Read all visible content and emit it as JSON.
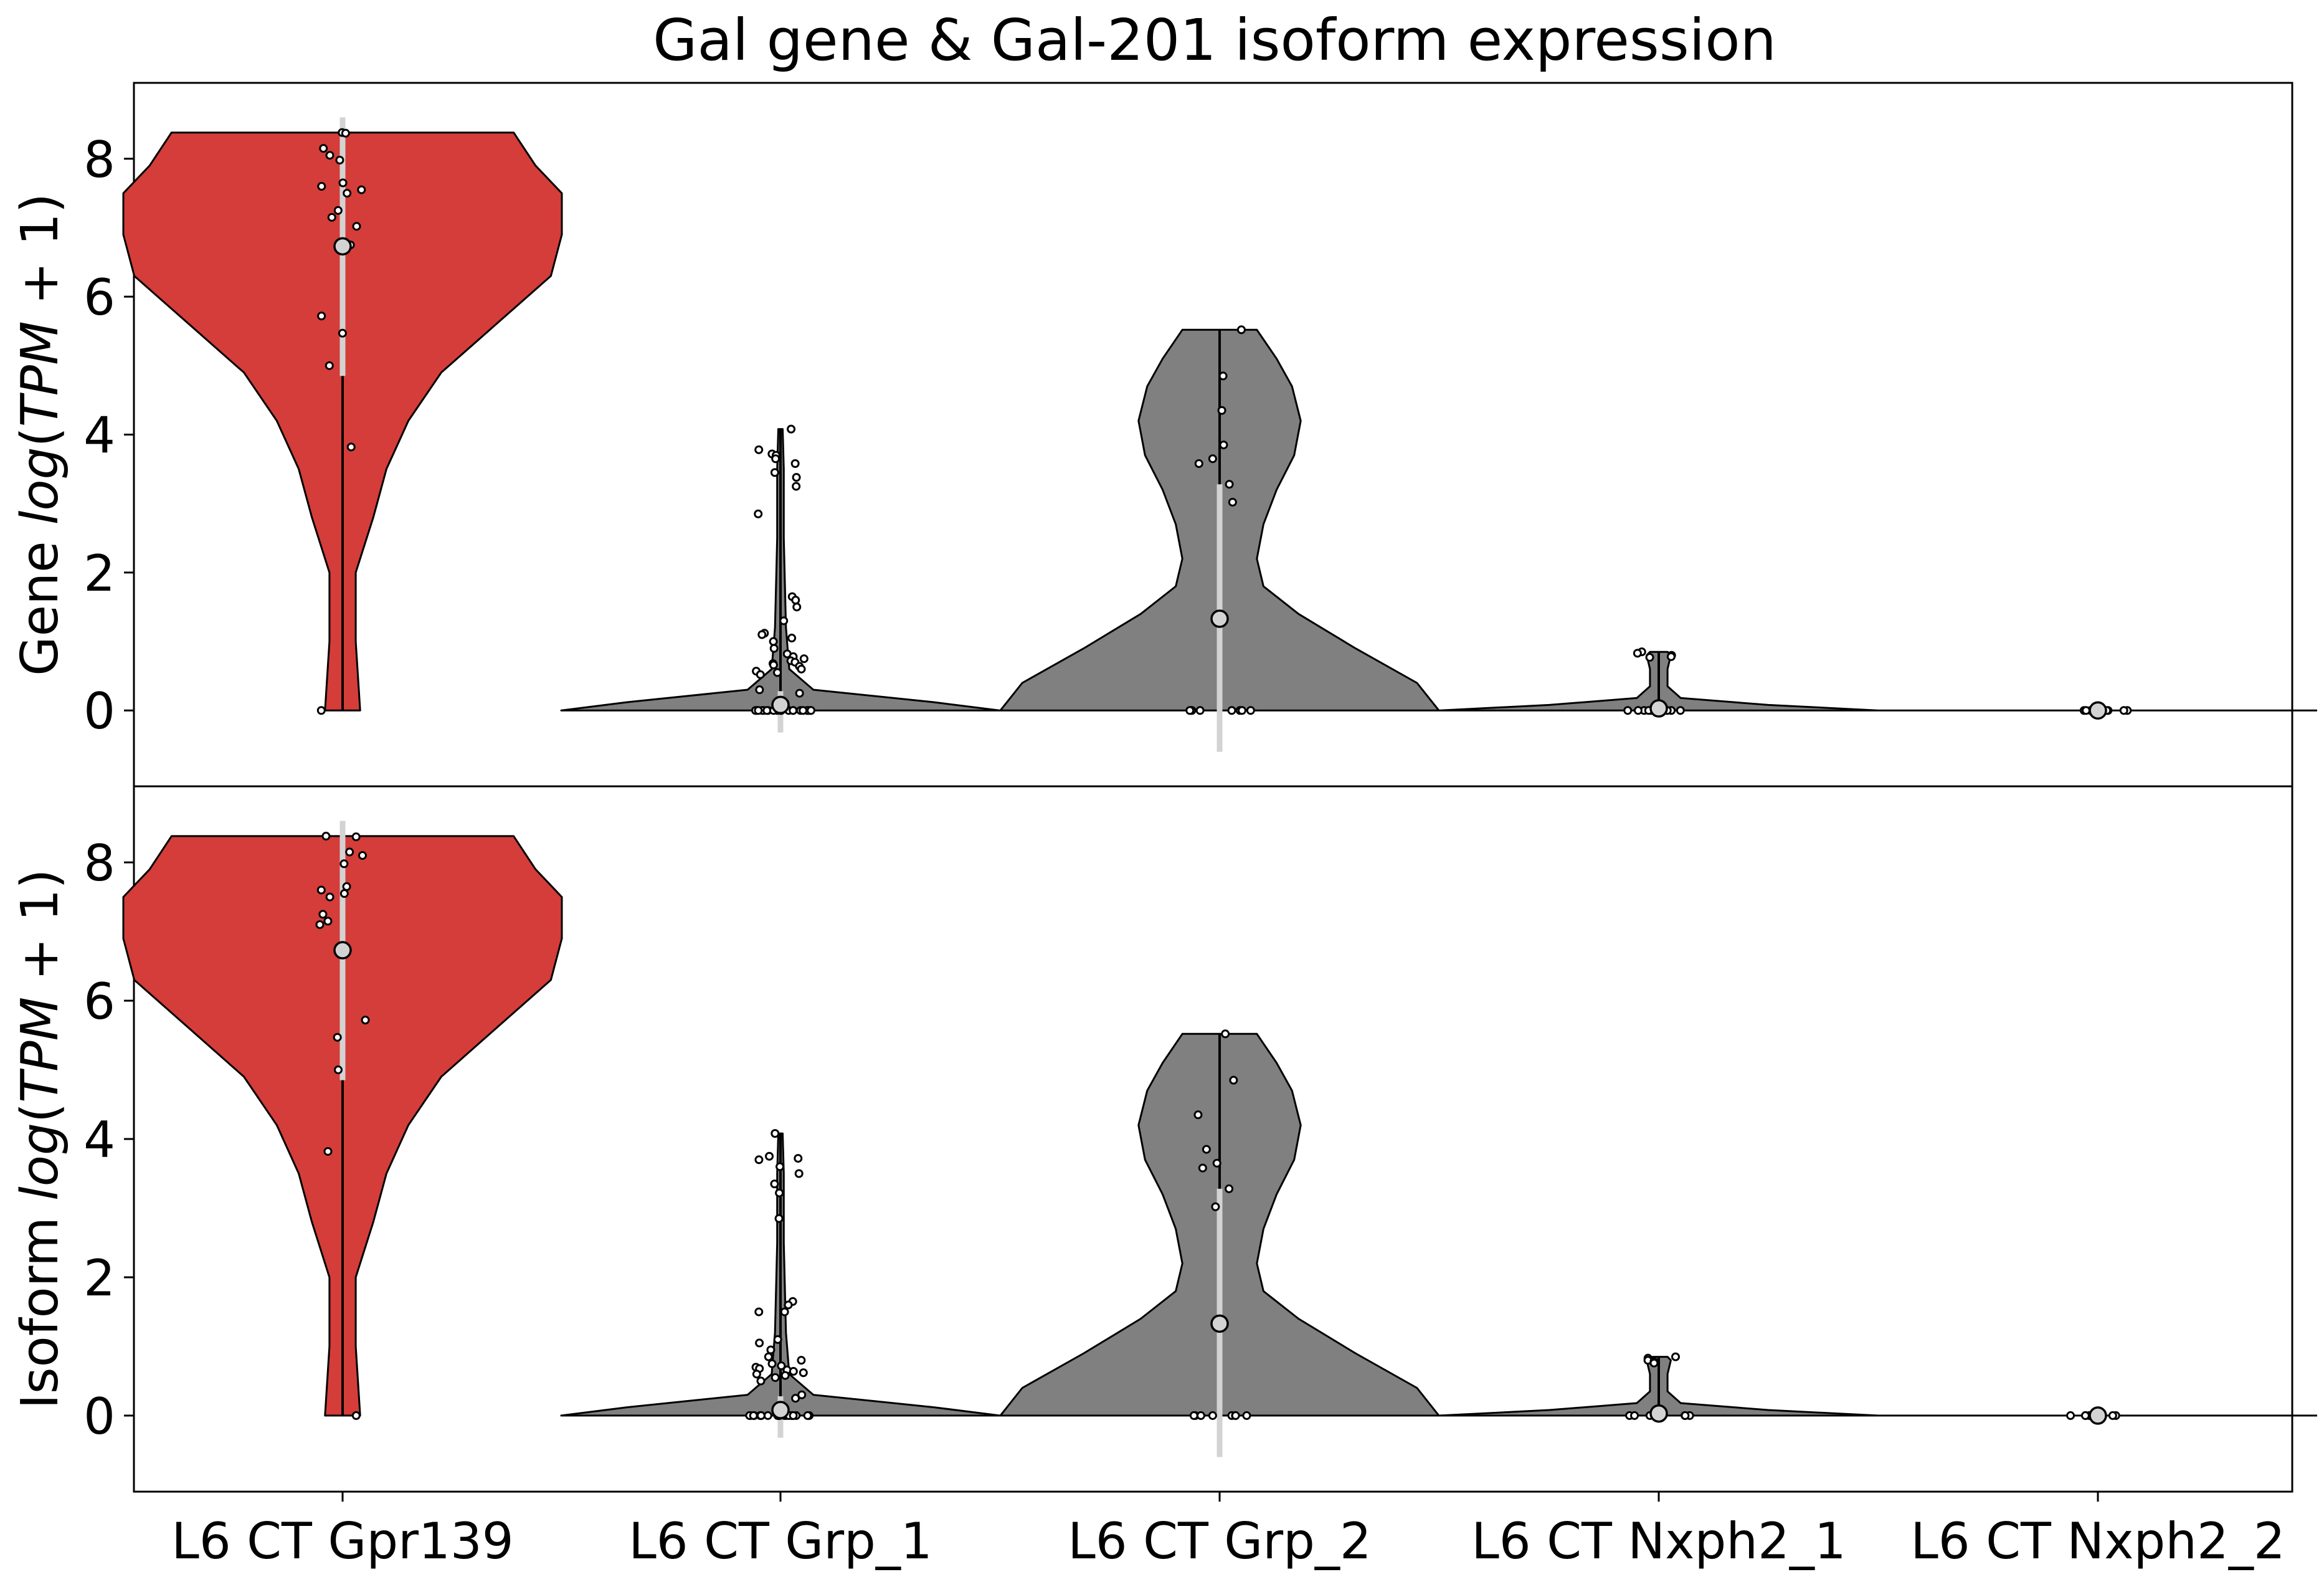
{
  "title": "Gal gene & Gal-201 isoform expression",
  "colors": {
    "highlight": "#d43d39",
    "other": "#808080",
    "outline": "#000000",
    "median": "#d3d3d3",
    "iqr": "#d3d3d3"
  },
  "chart_data": [
    {
      "type": "violin",
      "panel": "gene",
      "ylabel_prefix": "Gene",
      "ylabel_math": "log(TPM + 1)",
      "ylim": [
        -1.1,
        9.1
      ],
      "yticks": [
        0,
        2,
        4,
        6,
        8
      ],
      "categories": [
        "L6 CT Gpr139",
        "L6 CT Grp_1",
        "L6 CT Grp_2",
        "L6 CT Nxph2_1",
        "L6 CT Nxph2_2"
      ],
      "groups": [
        {
          "category": "L6 CT Gpr139",
          "highlight": true,
          "median": 6.73,
          "iqr": [
            4.85,
            8.6
          ],
          "range": [
            0,
            8.38
          ],
          "density": [
            [
              0,
              0.08
            ],
            [
              1.0,
              0.06
            ],
            [
              2.0,
              0.06
            ],
            [
              2.8,
              0.14
            ],
            [
              3.5,
              0.2
            ],
            [
              4.2,
              0.3
            ],
            [
              4.9,
              0.45
            ],
            [
              5.6,
              0.7
            ],
            [
              6.3,
              0.95
            ],
            [
              6.9,
              1.0
            ],
            [
              7.5,
              1.0
            ],
            [
              7.9,
              0.88
            ],
            [
              8.38,
              0.78
            ]
          ],
          "points": [
            8.38,
            8.37,
            8.15,
            8.05,
            7.98,
            7.65,
            7.6,
            7.55,
            7.5,
            7.25,
            7.15,
            7.02,
            6.75,
            5.72,
            5.47,
            5.0,
            3.82,
            0.0
          ]
        },
        {
          "category": "L6 CT Grp_1",
          "highlight": false,
          "median": 0.08,
          "iqr": [
            -0.32,
            0.28
          ],
          "range": [
            0,
            4.08
          ],
          "density": [
            [
              0,
              1.0
            ],
            [
              0.12,
              0.7
            ],
            [
              0.3,
              0.15
            ],
            [
              0.6,
              0.04
            ],
            [
              1.2,
              0.025
            ],
            [
              2.5,
              0.015
            ],
            [
              3.5,
              0.015
            ],
            [
              4.08,
              0.01
            ]
          ],
          "points": [
            4.08,
            3.78,
            3.72,
            3.7,
            3.65,
            3.58,
            3.45,
            3.38,
            3.25,
            2.85,
            1.65,
            1.6,
            1.5,
            1.3,
            1.12,
            1.1,
            1.05,
            1.0,
            0.9,
            0.82,
            0.78,
            0.75,
            0.72,
            0.7,
            0.68,
            0.66,
            0.64,
            0.6,
            0.57,
            0.55,
            0.52,
            0.3,
            0.25,
            0,
            0,
            0,
            0,
            0,
            0,
            0,
            0,
            0,
            0,
            0,
            0,
            0,
            0,
            0,
            0,
            0,
            0,
            0,
            0
          ]
        },
        {
          "category": "L6 CT Grp_2",
          "highlight": false,
          "median": 1.33,
          "iqr": [
            -0.6,
            3.28
          ],
          "range": [
            0,
            5.52
          ],
          "density": [
            [
              0,
              1.0
            ],
            [
              0.4,
              0.9
            ],
            [
              0.9,
              0.62
            ],
            [
              1.4,
              0.36
            ],
            [
              1.8,
              0.2
            ],
            [
              2.2,
              0.17
            ],
            [
              2.7,
              0.2
            ],
            [
              3.2,
              0.26
            ],
            [
              3.7,
              0.34
            ],
            [
              4.2,
              0.37
            ],
            [
              4.7,
              0.33
            ],
            [
              5.1,
              0.26
            ],
            [
              5.52,
              0.17
            ]
          ],
          "points": [
            5.52,
            4.85,
            4.35,
            3.85,
            3.65,
            3.58,
            3.28,
            3.02,
            0,
            0,
            0,
            0,
            0,
            0,
            0,
            0
          ]
        },
        {
          "category": "L6 CT Nxph2_1",
          "highlight": false,
          "median": 0.03,
          "iqr": [
            -0.05,
            0.08
          ],
          "range": [
            0,
            0.85
          ],
          "density": [
            [
              0,
              1.0
            ],
            [
              0.08,
              0.5
            ],
            [
              0.18,
              0.1
            ],
            [
              0.35,
              0.04
            ],
            [
              0.6,
              0.04
            ],
            [
              0.8,
              0.055
            ],
            [
              0.85,
              0.04
            ]
          ],
          "points": [
            0.85,
            0.83,
            0.8,
            0.78,
            0.77,
            0,
            0,
            0,
            0,
            0,
            0,
            0,
            0
          ]
        },
        {
          "category": "L6 CT Nxph2_2",
          "highlight": false,
          "median": 0.0,
          "iqr": [
            0,
            0
          ],
          "range": [
            0,
            0
          ],
          "density": [
            [
              0,
              1.0
            ]
          ],
          "points": [
            0,
            0,
            0,
            0,
            0,
            0,
            0,
            0
          ]
        }
      ]
    },
    {
      "type": "violin",
      "panel": "isoform",
      "ylabel_prefix": "Isoform",
      "ylabel_math": "log(TPM + 1)",
      "ylim": [
        -1.1,
        9.1
      ],
      "yticks": [
        0,
        2,
        4,
        6,
        8
      ],
      "categories": [
        "L6 CT Gpr139",
        "L6 CT Grp_1",
        "L6 CT Grp_2",
        "L6 CT Nxph2_1",
        "L6 CT Nxph2_2"
      ],
      "groups": [
        {
          "category": "L6 CT Gpr139",
          "highlight": true,
          "median": 6.73,
          "iqr": [
            4.85,
            8.6
          ],
          "range": [
            0,
            8.38
          ],
          "density": [
            [
              0,
              0.08
            ],
            [
              1.0,
              0.06
            ],
            [
              2.0,
              0.06
            ],
            [
              2.8,
              0.14
            ],
            [
              3.5,
              0.2
            ],
            [
              4.2,
              0.3
            ],
            [
              4.9,
              0.45
            ],
            [
              5.6,
              0.7
            ],
            [
              6.3,
              0.95
            ],
            [
              6.9,
              1.0
            ],
            [
              7.5,
              1.0
            ],
            [
              7.9,
              0.88
            ],
            [
              8.38,
              0.78
            ]
          ],
          "points": [
            8.38,
            8.37,
            8.15,
            8.1,
            7.98,
            7.65,
            7.6,
            7.55,
            7.5,
            7.25,
            7.15,
            7.1,
            6.75,
            5.72,
            5.47,
            5.0,
            3.82,
            0.0
          ]
        },
        {
          "category": "L6 CT Grp_1",
          "highlight": false,
          "median": 0.08,
          "iqr": [
            -0.32,
            0.28
          ],
          "range": [
            0,
            4.08
          ],
          "density": [
            [
              0,
              1.0
            ],
            [
              0.12,
              0.7
            ],
            [
              0.3,
              0.15
            ],
            [
              0.6,
              0.04
            ],
            [
              1.2,
              0.025
            ],
            [
              2.5,
              0.015
            ],
            [
              3.5,
              0.015
            ],
            [
              4.08,
              0.01
            ]
          ],
          "points": [
            4.08,
            3.75,
            3.72,
            3.7,
            3.6,
            3.5,
            3.35,
            3.22,
            2.85,
            1.65,
            1.6,
            1.5,
            1.5,
            1.1,
            1.05,
            0.95,
            0.85,
            0.8,
            0.75,
            0.72,
            0.7,
            0.68,
            0.66,
            0.64,
            0.62,
            0.6,
            0.58,
            0.55,
            0.5,
            0.3,
            0.25,
            0,
            0,
            0,
            0,
            0,
            0,
            0,
            0,
            0,
            0,
            0,
            0,
            0,
            0,
            0,
            0,
            0,
            0,
            0,
            0
          ]
        },
        {
          "category": "L6 CT Grp_2",
          "highlight": false,
          "median": 1.33,
          "iqr": [
            -0.6,
            3.28
          ],
          "range": [
            0,
            5.52
          ],
          "density": [
            [
              0,
              1.0
            ],
            [
              0.4,
              0.9
            ],
            [
              0.9,
              0.62
            ],
            [
              1.4,
              0.36
            ],
            [
              1.8,
              0.2
            ],
            [
              2.2,
              0.17
            ],
            [
              2.7,
              0.2
            ],
            [
              3.2,
              0.26
            ],
            [
              3.7,
              0.34
            ],
            [
              4.2,
              0.37
            ],
            [
              4.7,
              0.33
            ],
            [
              5.1,
              0.26
            ],
            [
              5.52,
              0.17
            ]
          ],
          "points": [
            5.52,
            4.85,
            4.35,
            3.85,
            3.65,
            3.58,
            3.28,
            3.02,
            0,
            0,
            0,
            0,
            0,
            0,
            0,
            0
          ]
        },
        {
          "category": "L6 CT Nxph2_1",
          "highlight": false,
          "median": 0.03,
          "iqr": [
            -0.05,
            0.08
          ],
          "range": [
            0,
            0.85
          ],
          "density": [
            [
              0,
              1.0
            ],
            [
              0.08,
              0.5
            ],
            [
              0.18,
              0.1
            ],
            [
              0.35,
              0.04
            ],
            [
              0.6,
              0.04
            ],
            [
              0.8,
              0.055
            ],
            [
              0.85,
              0.04
            ]
          ],
          "points": [
            0.85,
            0.83,
            0.8,
            0.78,
            0.76,
            0,
            0,
            0,
            0,
            0,
            0,
            0,
            0
          ]
        },
        {
          "category": "L6 CT Nxph2_2",
          "highlight": false,
          "median": 0.0,
          "iqr": [
            0,
            0
          ],
          "range": [
            0,
            0
          ],
          "density": [
            [
              0,
              1.0
            ]
          ],
          "points": [
            0,
            0,
            0,
            0,
            0,
            0,
            0,
            0
          ]
        }
      ]
    }
  ]
}
